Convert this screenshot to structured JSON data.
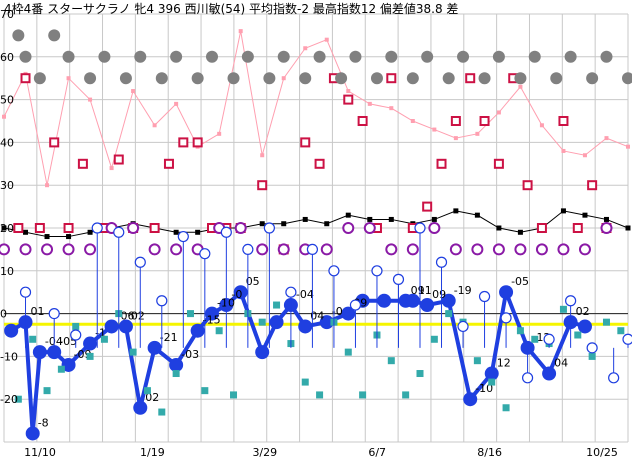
{
  "chart_data": {
    "type": "line",
    "title": "4枠4番 スターサクラノ 牝4 396 西川敏(54) 平均指数-2 最高指数12 偏差値38.8 差",
    "xlabel": "",
    "ylabel": "",
    "ylim": [
      -30,
      70
    ],
    "grid": true,
    "x_tick_labels": [
      "11/10",
      "1/19",
      "3/29",
      "6/7",
      "8/16",
      "10/25"
    ],
    "y_tick_labels": [
      "70",
      "60",
      "50",
      "40",
      "30",
      "20",
      "10",
      "0",
      "-10",
      "-20"
    ],
    "reference_line": 0,
    "series": [
      {
        "style": "main-index",
        "color": "#1f3fe0",
        "points": [
          [
            1,
            -4
          ],
          [
            3,
            -2
          ],
          [
            4,
            -28
          ],
          [
            5,
            -9
          ],
          [
            7,
            -9
          ],
          [
            9,
            -12
          ],
          [
            12,
            -7
          ],
          [
            15,
            -3
          ],
          [
            17,
            -3
          ],
          [
            19,
            -22
          ],
          [
            21,
            -8
          ],
          [
            24,
            -12
          ],
          [
            27,
            -4
          ],
          [
            29,
            0
          ],
          [
            31,
            2
          ],
          [
            33,
            5
          ],
          [
            36,
            -9
          ],
          [
            38,
            -2
          ],
          [
            40,
            2
          ],
          [
            42,
            -3
          ],
          [
            45,
            -2
          ],
          [
            48,
            0
          ],
          [
            50,
            3
          ],
          [
            53,
            3
          ],
          [
            56,
            3
          ],
          [
            57,
            3
          ],
          [
            59,
            2
          ],
          [
            62,
            3
          ],
          [
            65,
            -20
          ],
          [
            68,
            -14
          ],
          [
            70,
            5
          ],
          [
            73,
            -8
          ],
          [
            76,
            -14
          ],
          [
            79,
            -2
          ],
          [
            81,
            -3
          ]
        ],
        "labels": [
          {
            "i": 1,
            "text": "01"
          },
          {
            "i": 2,
            "text": "-8"
          },
          {
            "i": 3,
            "text": "-04"
          },
          {
            "i": 4,
            "text": "-05"
          },
          {
            "i": 5,
            "text": "-09"
          },
          {
            "i": 6,
            "text": "-1"
          },
          {
            "i": 7,
            "text": "-06"
          },
          {
            "i": 8,
            "text": "02"
          },
          {
            "i": 9,
            "text": "02"
          },
          {
            "i": 10,
            "text": "-21"
          },
          {
            "i": 11,
            "text": "-03"
          },
          {
            "i": 12,
            "text": "-15"
          },
          {
            "i": 13,
            "text": "-10"
          },
          {
            "i": 14,
            "text": "-0"
          },
          {
            "i": 15,
            "text": "05"
          },
          {
            "i": 18,
            "text": "-04"
          },
          {
            "i": 19,
            "text": "04"
          },
          {
            "i": 20,
            "text": "-0"
          },
          {
            "i": 21,
            "text": "09"
          },
          {
            "i": 24,
            "text": "09"
          },
          {
            "i": 25,
            "text": "11"
          },
          {
            "i": 26,
            "text": "09"
          },
          {
            "i": 27,
            "text": "-19"
          },
          {
            "i": 28,
            "text": "-10"
          },
          {
            "i": 29,
            "text": "12"
          },
          {
            "i": 30,
            "text": "-05"
          },
          {
            "i": 31,
            "text": "-12"
          },
          {
            "i": 32,
            "text": "04"
          },
          {
            "i": 33,
            "text": "02"
          }
        ]
      },
      {
        "style": "black-line",
        "color": "#000000",
        "points": [
          [
            0,
            20
          ],
          [
            3,
            19
          ],
          [
            6,
            18
          ],
          [
            9,
            18
          ],
          [
            12,
            19
          ],
          [
            15,
            20
          ],
          [
            18,
            21
          ],
          [
            21,
            20
          ],
          [
            24,
            19
          ],
          [
            27,
            19
          ],
          [
            30,
            20
          ],
          [
            33,
            20
          ],
          [
            36,
            21
          ],
          [
            39,
            21
          ],
          [
            42,
            22
          ],
          [
            45,
            21
          ],
          [
            48,
            23
          ],
          [
            51,
            22
          ],
          [
            54,
            22
          ],
          [
            57,
            21
          ],
          [
            60,
            22
          ],
          [
            63,
            24
          ],
          [
            66,
            23
          ],
          [
            69,
            20
          ],
          [
            72,
            19
          ],
          [
            75,
            20
          ],
          [
            78,
            24
          ],
          [
            81,
            23
          ],
          [
            84,
            22
          ],
          [
            87,
            20
          ]
        ]
      },
      {
        "style": "pink-line",
        "color": "#ff9fb0",
        "points": [
          [
            0,
            46
          ],
          [
            3,
            56
          ],
          [
            6,
            30
          ],
          [
            9,
            55
          ],
          [
            12,
            50
          ],
          [
            15,
            34
          ],
          [
            18,
            52
          ],
          [
            21,
            44
          ],
          [
            24,
            49
          ],
          [
            27,
            39
          ],
          [
            30,
            42
          ],
          [
            33,
            66
          ],
          [
            36,
            37
          ],
          [
            39,
            55
          ],
          [
            42,
            62
          ],
          [
            45,
            64
          ],
          [
            48,
            52
          ],
          [
            51,
            49
          ],
          [
            54,
            48
          ],
          [
            57,
            45
          ],
          [
            60,
            43
          ],
          [
            63,
            41
          ],
          [
            66,
            42
          ],
          [
            69,
            47
          ],
          [
            72,
            53
          ],
          [
            75,
            44
          ],
          [
            78,
            38
          ],
          [
            81,
            37
          ],
          [
            84,
            41
          ],
          [
            87,
            39
          ]
        ]
      },
      {
        "style": "red-squares",
        "color": "#cc1144",
        "points": [
          [
            2,
            20
          ],
          [
            3,
            55
          ],
          [
            5,
            20
          ],
          [
            7,
            40
          ],
          [
            9,
            20
          ],
          [
            11,
            35
          ],
          [
            14,
            20
          ],
          [
            16,
            36
          ],
          [
            18,
            20
          ],
          [
            21,
            20
          ],
          [
            23,
            35
          ],
          [
            25,
            40
          ],
          [
            27,
            40
          ],
          [
            29,
            20
          ],
          [
            31,
            20
          ],
          [
            33,
            20
          ],
          [
            36,
            30
          ],
          [
            39,
            15
          ],
          [
            42,
            40
          ],
          [
            44,
            35
          ],
          [
            46,
            55
          ],
          [
            48,
            50
          ],
          [
            50,
            45
          ],
          [
            52,
            20
          ],
          [
            54,
            55
          ],
          [
            57,
            20
          ],
          [
            59,
            25
          ],
          [
            61,
            35
          ],
          [
            63,
            45
          ],
          [
            65,
            55
          ],
          [
            67,
            45
          ],
          [
            69,
            35
          ],
          [
            71,
            55
          ],
          [
            73,
            30
          ],
          [
            75,
            20
          ],
          [
            78,
            45
          ],
          [
            80,
            20
          ],
          [
            82,
            30
          ],
          [
            84,
            20
          ]
        ]
      },
      {
        "style": "gray-dots",
        "color": "#808080",
        "points": [
          [
            1,
            75
          ],
          [
            2,
            65
          ],
          [
            3,
            60
          ],
          [
            5,
            55
          ],
          [
            7,
            65
          ],
          [
            9,
            60
          ],
          [
            12,
            55
          ],
          [
            14,
            60
          ],
          [
            17,
            55
          ],
          [
            19,
            60
          ],
          [
            22,
            55
          ],
          [
            24,
            60
          ],
          [
            27,
            55
          ],
          [
            29,
            60
          ],
          [
            32,
            55
          ],
          [
            34,
            60
          ],
          [
            37,
            55
          ],
          [
            39,
            60
          ],
          [
            42,
            55
          ],
          [
            44,
            60
          ],
          [
            47,
            55
          ],
          [
            49,
            60
          ],
          [
            52,
            55
          ],
          [
            54,
            60
          ],
          [
            57,
            55
          ],
          [
            59,
            60
          ],
          [
            62,
            55
          ],
          [
            64,
            60
          ],
          [
            67,
            55
          ],
          [
            69,
            60
          ],
          [
            72,
            55
          ],
          [
            74,
            60
          ],
          [
            77,
            55
          ],
          [
            79,
            60
          ],
          [
            82,
            55
          ],
          [
            84,
            60
          ],
          [
            87,
            55
          ]
        ]
      },
      {
        "style": "teal-squares",
        "color": "#33aaaa",
        "points": [
          [
            2,
            -20
          ],
          [
            4,
            -6
          ],
          [
            6,
            -18
          ],
          [
            8,
            -13
          ],
          [
            10,
            -3
          ],
          [
            12,
            -10
          ],
          [
            14,
            -6
          ],
          [
            16,
            0
          ],
          [
            18,
            -9
          ],
          [
            20,
            -18
          ],
          [
            22,
            -23
          ],
          [
            24,
            -14
          ],
          [
            26,
            0
          ],
          [
            28,
            -18
          ],
          [
            30,
            -4
          ],
          [
            32,
            -19
          ],
          [
            34,
            0
          ],
          [
            36,
            -2
          ],
          [
            38,
            2
          ],
          [
            40,
            -7
          ],
          [
            42,
            -16
          ],
          [
            44,
            -19
          ],
          [
            46,
            -2
          ],
          [
            48,
            -9
          ],
          [
            50,
            -19
          ],
          [
            52,
            -5
          ],
          [
            54,
            -11
          ],
          [
            56,
            -19
          ],
          [
            58,
            -14
          ],
          [
            60,
            -6
          ],
          [
            62,
            0
          ],
          [
            64,
            -2
          ],
          [
            66,
            -11
          ],
          [
            68,
            -16
          ],
          [
            70,
            -22
          ],
          [
            72,
            -4
          ],
          [
            74,
            -6
          ],
          [
            76,
            -7
          ],
          [
            78,
            1
          ],
          [
            80,
            -5
          ],
          [
            82,
            -10
          ],
          [
            84,
            -2
          ],
          [
            86,
            -4
          ]
        ]
      },
      {
        "style": "purple-rings",
        "color": "#8a1aa6",
        "points": [
          [
            0,
            15
          ],
          [
            3,
            15
          ],
          [
            6,
            15
          ],
          [
            9,
            15
          ],
          [
            12,
            15
          ],
          [
            15,
            20
          ],
          [
            18,
            20
          ],
          [
            21,
            15
          ],
          [
            24,
            15
          ],
          [
            27,
            15
          ],
          [
            30,
            20
          ],
          [
            33,
            20
          ],
          [
            36,
            15
          ],
          [
            39,
            15
          ],
          [
            42,
            15
          ],
          [
            45,
            15
          ],
          [
            48,
            20
          ],
          [
            51,
            20
          ],
          [
            54,
            15
          ],
          [
            57,
            15
          ],
          [
            60,
            20
          ],
          [
            63,
            15
          ],
          [
            66,
            15
          ],
          [
            69,
            15
          ],
          [
            72,
            15
          ],
          [
            75,
            15
          ],
          [
            78,
            15
          ],
          [
            81,
            15
          ],
          [
            84,
            20
          ]
        ]
      },
      {
        "style": "blue-rings",
        "color": "#1f3fe0",
        "points": [
          [
            3,
            5
          ],
          [
            7,
            0
          ],
          [
            10,
            -5
          ],
          [
            13,
            20
          ],
          [
            16,
            19
          ],
          [
            19,
            12
          ],
          [
            22,
            3
          ],
          [
            25,
            18
          ],
          [
            28,
            14
          ],
          [
            31,
            19
          ],
          [
            34,
            15
          ],
          [
            37,
            20
          ],
          [
            40,
            5
          ],
          [
            43,
            15
          ],
          [
            46,
            10
          ],
          [
            49,
            2
          ],
          [
            52,
            10
          ],
          [
            55,
            8
          ],
          [
            58,
            20
          ],
          [
            61,
            12
          ],
          [
            64,
            -3
          ],
          [
            67,
            4
          ],
          [
            70,
            -1
          ],
          [
            73,
            -15
          ],
          [
            76,
            -6
          ],
          [
            79,
            3
          ],
          [
            82,
            -8
          ],
          [
            85,
            -15
          ],
          [
            87,
            -6
          ]
        ]
      }
    ]
  }
}
